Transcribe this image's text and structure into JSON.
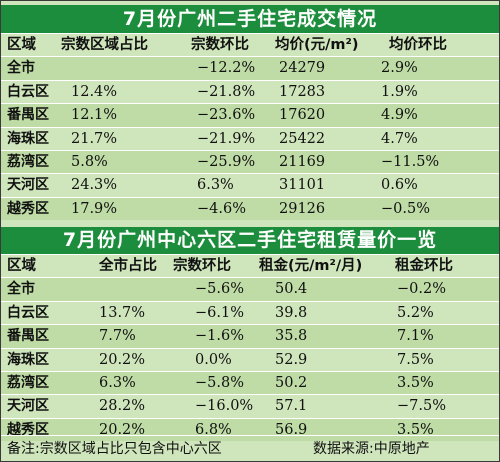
{
  "table1": {
    "title": "7月份广州二手住宅成交情况",
    "headers": [
      "区域",
      "宗数区域占比",
      "宗数环比",
      "均价(元/m²)",
      "均价环比"
    ],
    "rows": [
      [
        "全市",
        "",
        "−12.2%",
        "24279",
        "2.9%"
      ],
      [
        "白云区",
        "12.4%",
        "−21.8%",
        "17283",
        "1.9%"
      ],
      [
        "番禺区",
        "12.1%",
        "−23.6%",
        "17620",
        "4.9%"
      ],
      [
        "海珠区",
        "21.7%",
        "−21.9%",
        "25422",
        "4.7%"
      ],
      [
        "荔湾区",
        "5.8%",
        "−25.9%",
        "21169",
        "−11.5%"
      ],
      [
        "天河区",
        "24.3%",
        "6.3%",
        "31101",
        "0.6%"
      ],
      [
        "越秀区",
        "17.9%",
        "−4.6%",
        "29126",
        "−0.5%"
      ]
    ]
  },
  "table2": {
    "title": "7月份广州中心六区二手住宅租赁量价一览",
    "headers": [
      "区域",
      "全市占比",
      "宗数环比",
      "租金(元/m²/月)",
      "租金环比"
    ],
    "rows": [
      [
        "全市",
        "",
        "−5.6%",
        "50.4",
        "−0.2%"
      ],
      [
        "白云区",
        "13.7%",
        "−6.1%",
        "39.8",
        "5.2%"
      ],
      [
        "番禺区",
        "7.7%",
        "−1.6%",
        "35.8",
        "7.1%"
      ],
      [
        "海珠区",
        "20.2%",
        "0.0%",
        "52.9",
        "7.5%"
      ],
      [
        "荔湾区",
        "6.3%",
        "−5.8%",
        "50.2",
        "3.5%"
      ],
      [
        "天河区",
        "28.2%",
        "−16.0%",
        "57.1",
        "−7.5%"
      ],
      [
        "越秀区",
        "20.2%",
        "6.8%",
        "56.9",
        "3.5%"
      ]
    ]
  },
  "footer": {
    "note": "备注:宗数区域占比只包含中心六区",
    "source": "数据来源:中原地产"
  }
}
